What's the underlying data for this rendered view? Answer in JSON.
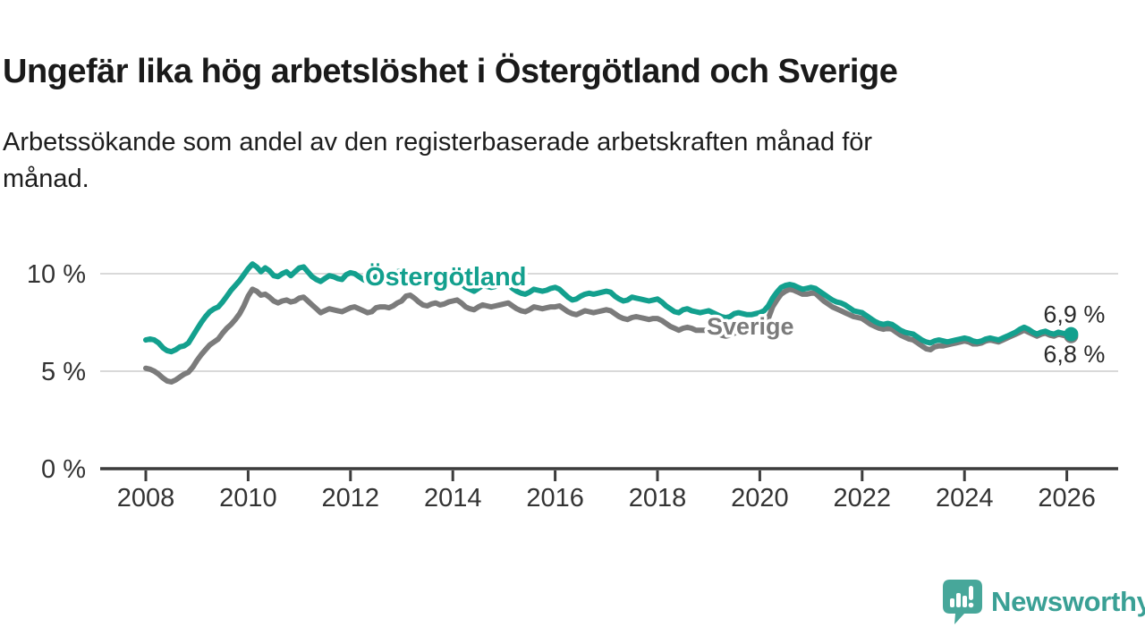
{
  "header": {
    "title": "Ungefär lika hög arbetslöshet i Östergötland och Sverige",
    "subtitle_line1": "Arbetssökande som andel av den registerbaserade arbetskraften månad för",
    "subtitle_line2": "månad."
  },
  "chart_data": {
    "type": "line",
    "unit": "%",
    "x_start": 2008,
    "x_end": 2026.08,
    "points_per_year": 12,
    "x_axis_ticks": [
      2008,
      2010,
      2012,
      2014,
      2016,
      2018,
      2020,
      2022,
      2024,
      2026
    ],
    "y_axis_ticks": [
      {
        "value": 0,
        "label": "0 %"
      },
      {
        "value": 5,
        "label": "5 %"
      },
      {
        "value": 10,
        "label": "10 %"
      }
    ],
    "ylim": [
      0,
      11.5
    ],
    "grid": "horizontal",
    "legend_position": "inline-labels",
    "series": [
      {
        "name": "Sverige",
        "color": "#7b7b7b",
        "end_label": "6,8 %",
        "values": [
          5.15,
          5.1,
          5.0,
          4.85,
          4.65,
          4.5,
          4.45,
          4.55,
          4.7,
          4.85,
          4.95,
          5.2,
          5.55,
          5.85,
          6.1,
          6.35,
          6.5,
          6.65,
          6.95,
          7.2,
          7.4,
          7.65,
          7.95,
          8.35,
          8.85,
          9.2,
          9.1,
          8.9,
          8.95,
          8.8,
          8.6,
          8.5,
          8.6,
          8.65,
          8.55,
          8.6,
          8.75,
          8.8,
          8.6,
          8.4,
          8.2,
          8.0,
          8.1,
          8.2,
          8.15,
          8.1,
          8.05,
          8.15,
          8.25,
          8.3,
          8.2,
          8.1,
          8.0,
          8.05,
          8.25,
          8.3,
          8.3,
          8.25,
          8.35,
          8.5,
          8.6,
          8.85,
          8.9,
          8.75,
          8.55,
          8.4,
          8.35,
          8.45,
          8.5,
          8.4,
          8.45,
          8.55,
          8.6,
          8.65,
          8.5,
          8.3,
          8.2,
          8.15,
          8.3,
          8.4,
          8.35,
          8.3,
          8.35,
          8.4,
          8.45,
          8.5,
          8.35,
          8.2,
          8.1,
          8.05,
          8.15,
          8.3,
          8.25,
          8.2,
          8.25,
          8.3,
          8.3,
          8.35,
          8.2,
          8.05,
          7.95,
          7.9,
          8.0,
          8.1,
          8.05,
          8.0,
          8.05,
          8.1,
          8.15,
          8.1,
          7.95,
          7.8,
          7.7,
          7.65,
          7.75,
          7.8,
          7.75,
          7.7,
          7.65,
          7.7,
          7.7,
          7.6,
          7.45,
          7.3,
          7.2,
          7.1,
          7.2,
          7.25,
          7.2,
          7.1,
          7.1,
          7.1,
          7.1,
          7.05,
          6.95,
          6.85,
          6.8,
          6.85,
          6.95,
          7.0,
          6.95,
          6.95,
          7.0,
          7.05,
          7.15,
          7.3,
          7.7,
          8.3,
          8.65,
          8.95,
          9.1,
          9.2,
          9.15,
          9.05,
          8.95,
          8.95,
          9.0,
          9.0,
          8.8,
          8.6,
          8.45,
          8.3,
          8.2,
          8.1,
          8.0,
          7.9,
          7.8,
          7.75,
          7.7,
          7.55,
          7.4,
          7.3,
          7.2,
          7.15,
          7.2,
          7.15,
          7.0,
          6.85,
          6.75,
          6.65,
          6.6,
          6.45,
          6.3,
          6.15,
          6.1,
          6.25,
          6.3,
          6.3,
          6.35,
          6.4,
          6.45,
          6.5,
          6.55,
          6.5,
          6.4,
          6.4,
          6.45,
          6.55,
          6.6,
          6.55,
          6.5,
          6.6,
          6.7,
          6.8,
          6.9,
          7.0,
          7.1,
          7.0,
          6.9,
          6.8,
          6.9,
          6.95,
          6.85,
          6.8,
          6.9,
          6.85,
          6.8,
          6.8
        ]
      },
      {
        "name": "Östergötland",
        "color": "#13a08e",
        "end_label": "6,9 %",
        "values": [
          6.6,
          6.65,
          6.6,
          6.45,
          6.2,
          6.05,
          6.0,
          6.1,
          6.25,
          6.3,
          6.45,
          6.8,
          7.15,
          7.5,
          7.8,
          8.05,
          8.2,
          8.3,
          8.55,
          8.85,
          9.15,
          9.4,
          9.65,
          9.95,
          10.25,
          10.5,
          10.35,
          10.1,
          10.3,
          10.15,
          9.9,
          9.85,
          10.0,
          10.1,
          9.9,
          10.1,
          10.3,
          10.35,
          10.1,
          9.85,
          9.7,
          9.6,
          9.75,
          9.9,
          9.85,
          9.75,
          9.7,
          9.95,
          10.05,
          10.0,
          9.85,
          9.7,
          9.6,
          9.65,
          9.85,
          9.8,
          9.85,
          9.9,
          10.0,
          10.1,
          10.15,
          10.1,
          9.95,
          9.75,
          9.6,
          9.5,
          9.6,
          9.7,
          9.6,
          9.55,
          9.65,
          9.75,
          9.8,
          9.75,
          9.5,
          9.3,
          9.2,
          9.1,
          9.25,
          9.4,
          9.35,
          9.3,
          9.35,
          9.45,
          9.5,
          9.45,
          9.25,
          9.1,
          9.0,
          8.95,
          9.05,
          9.2,
          9.15,
          9.1,
          9.15,
          9.25,
          9.3,
          9.2,
          9.0,
          8.8,
          8.65,
          8.7,
          8.85,
          8.95,
          9.0,
          8.95,
          9.0,
          9.05,
          9.1,
          9.05,
          8.85,
          8.7,
          8.6,
          8.65,
          8.8,
          8.75,
          8.7,
          8.65,
          8.6,
          8.65,
          8.7,
          8.55,
          8.35,
          8.2,
          8.05,
          8.0,
          8.15,
          8.2,
          8.1,
          8.05,
          8.0,
          8.05,
          8.1,
          8.0,
          7.9,
          7.8,
          7.75,
          7.8,
          7.95,
          8.0,
          7.95,
          7.9,
          7.9,
          7.95,
          8.0,
          8.1,
          8.35,
          8.75,
          9.05,
          9.3,
          9.4,
          9.45,
          9.4,
          9.3,
          9.2,
          9.25,
          9.3,
          9.25,
          9.1,
          8.95,
          8.8,
          8.65,
          8.55,
          8.5,
          8.4,
          8.25,
          8.1,
          8.05,
          8.0,
          7.85,
          7.7,
          7.55,
          7.45,
          7.4,
          7.45,
          7.4,
          7.25,
          7.1,
          7.0,
          6.95,
          6.9,
          6.75,
          6.6,
          6.5,
          6.45,
          6.55,
          6.6,
          6.55,
          6.5,
          6.55,
          6.6,
          6.65,
          6.7,
          6.65,
          6.55,
          6.5,
          6.55,
          6.65,
          6.7,
          6.65,
          6.6,
          6.7,
          6.8,
          6.9,
          7.0,
          7.15,
          7.25,
          7.15,
          7.0,
          6.9,
          7.0,
          7.05,
          6.95,
          6.9,
          7.0,
          6.95,
          6.9,
          6.9
        ]
      }
    ]
  },
  "branding": {
    "logo_text": "Newsworthy",
    "logo_color": "#3aa095",
    "logo_icon": "speech-bubble-bar-chart-icon",
    "logo_icon_color": "#47a79a"
  }
}
